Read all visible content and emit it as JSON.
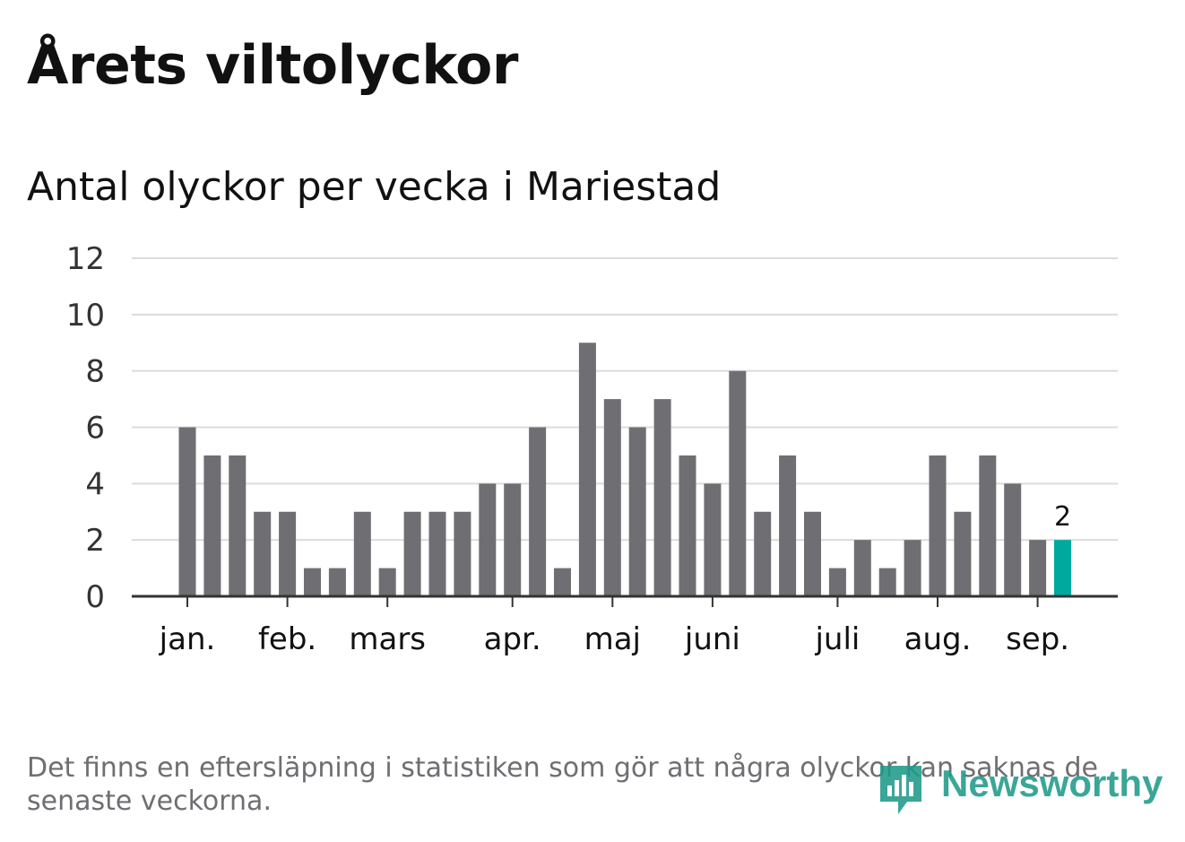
{
  "header": {
    "title": "Årets viltolyckor"
  },
  "chart_data": {
    "type": "bar",
    "title": "Antal olyckor per vecka i Mariestad",
    "xlabel": "",
    "ylabel": "",
    "ylim": [
      0,
      12
    ],
    "yticks": [
      0,
      2,
      4,
      6,
      8,
      10,
      12
    ],
    "grid": true,
    "values": [
      6,
      5,
      5,
      3,
      3,
      1,
      1,
      3,
      1,
      3,
      3,
      3,
      4,
      4,
      6,
      1,
      9,
      7,
      6,
      7,
      5,
      4,
      8,
      3,
      5,
      3,
      1,
      2,
      1,
      2,
      5,
      3,
      5,
      4,
      2,
      2
    ],
    "month_ticks": [
      {
        "label": "jan.",
        "position": 0
      },
      {
        "label": "feb.",
        "position": 4
      },
      {
        "label": "mars",
        "position": 8
      },
      {
        "label": "apr.",
        "position": 13
      },
      {
        "label": "maj",
        "position": 17
      },
      {
        "label": "juni",
        "position": 21
      },
      {
        "label": "juli",
        "position": 26
      },
      {
        "label": "aug.",
        "position": 30
      },
      {
        "label": "sep.",
        "position": 34
      }
    ],
    "highlight_index": 35,
    "highlight_label": "2",
    "colors": {
      "bar": "#6e6e73",
      "highlight": "#00a99d",
      "grid": "#dcdcdc",
      "axis": "#333333"
    }
  },
  "footnote": "Det finns en eftersläpning i statistiken som gör att några olyckor kan saknas de senaste veckorna.",
  "logo": {
    "text": "Newsworthy",
    "icon": "newsworthy-chart-icon",
    "color": "#1f9a8a"
  }
}
